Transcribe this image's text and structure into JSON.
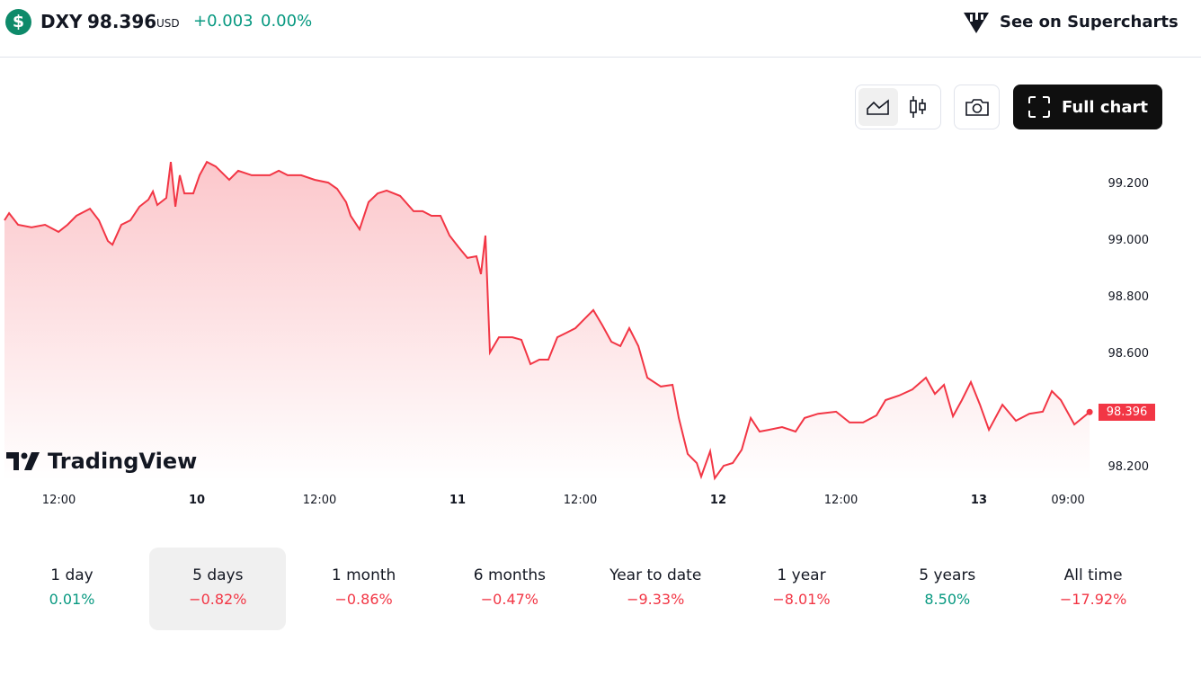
{
  "header": {
    "symbol": "DXY",
    "price": "98.396",
    "currency": "USD",
    "change": "+0.003",
    "change_pct": "0.00%",
    "logo_glyph": "$",
    "supercharts": "See on Supercharts"
  },
  "toolbar": {
    "full_chart": "Full chart",
    "icons": [
      "area-chart-icon",
      "candles-icon",
      "camera-icon",
      "fullscreen-icon"
    ]
  },
  "brand": "TradingView",
  "colors": {
    "up": "#089981",
    "down": "#f23645",
    "line": "#f23645"
  },
  "chart_data": {
    "type": "area",
    "x_unit": "hours since day 9 00:00",
    "y_ticks": [
      "99.200",
      "99.000",
      "98.800",
      "98.600",
      "98.200"
    ],
    "y_tick_values": [
      99.2,
      99.0,
      98.8,
      98.6,
      98.2
    ],
    "x_ticks": [
      {
        "label": "12:00",
        "h": 11.3,
        "bold": false
      },
      {
        "label": "10",
        "h": 24,
        "bold": true
      },
      {
        "label": "12:00",
        "h": 35.3,
        "bold": false
      },
      {
        "label": "11",
        "h": 48,
        "bold": true
      },
      {
        "label": "12:00",
        "h": 59.3,
        "bold": false
      },
      {
        "label": "12",
        "h": 72,
        "bold": true
      },
      {
        "label": "12:00",
        "h": 83.3,
        "bold": false
      },
      {
        "label": "13",
        "h": 96,
        "bold": true
      },
      {
        "label": "09:00",
        "h": 104.2,
        "bold": false
      }
    ],
    "last_price": "98.396",
    "points": [
      [
        6.29,
        99.073
      ],
      [
        6.71,
        99.098
      ],
      [
        7.54,
        99.057
      ],
      [
        8.78,
        99.048
      ],
      [
        10.02,
        99.057
      ],
      [
        11.26,
        99.032
      ],
      [
        12.09,
        99.057
      ],
      [
        12.91,
        99.089
      ],
      [
        14.16,
        99.114
      ],
      [
        14.98,
        99.073
      ],
      [
        15.81,
        99.0
      ],
      [
        16.23,
        98.987
      ],
      [
        17.05,
        99.057
      ],
      [
        17.88,
        99.073
      ],
      [
        18.71,
        99.121
      ],
      [
        19.54,
        99.146
      ],
      [
        19.95,
        99.175
      ],
      [
        20.36,
        99.127
      ],
      [
        21.19,
        99.152
      ],
      [
        21.6,
        99.279
      ],
      [
        22.02,
        99.121
      ],
      [
        22.43,
        99.232
      ],
      [
        22.85,
        99.168
      ],
      [
        23.67,
        99.168
      ],
      [
        24.25,
        99.232
      ],
      [
        24.92,
        99.279
      ],
      [
        25.74,
        99.263
      ],
      [
        26.98,
        99.216
      ],
      [
        27.81,
        99.248
      ],
      [
        29.05,
        99.232
      ],
      [
        30.71,
        99.232
      ],
      [
        31.54,
        99.248
      ],
      [
        32.36,
        99.232
      ],
      [
        33.6,
        99.232
      ],
      [
        34.85,
        99.216
      ],
      [
        36.09,
        99.206
      ],
      [
        36.91,
        99.184
      ],
      [
        37.74,
        99.137
      ],
      [
        38.16,
        99.089
      ],
      [
        38.98,
        99.041
      ],
      [
        39.81,
        99.137
      ],
      [
        40.64,
        99.168
      ],
      [
        41.47,
        99.178
      ],
      [
        42.71,
        99.159
      ],
      [
        43.95,
        99.105
      ],
      [
        44.78,
        99.105
      ],
      [
        45.6,
        99.089
      ],
      [
        46.43,
        99.089
      ],
      [
        47.26,
        99.019
      ],
      [
        48.09,
        98.978
      ],
      [
        48.91,
        98.94
      ],
      [
        49.74,
        98.946
      ],
      [
        50.15,
        98.883
      ],
      [
        50.57,
        99.019
      ],
      [
        50.98,
        98.606
      ],
      [
        51.81,
        98.66
      ],
      [
        53.05,
        98.66
      ],
      [
        53.88,
        98.651
      ],
      [
        54.71,
        98.565
      ],
      [
        55.53,
        98.581
      ],
      [
        56.36,
        98.581
      ],
      [
        57.19,
        98.66
      ],
      [
        58.02,
        98.676
      ],
      [
        58.85,
        98.692
      ],
      [
        59.67,
        98.724
      ],
      [
        60.5,
        98.756
      ],
      [
        61.33,
        98.702
      ],
      [
        62.16,
        98.644
      ],
      [
        62.99,
        98.629
      ],
      [
        63.81,
        98.692
      ],
      [
        64.64,
        98.629
      ],
      [
        65.47,
        98.517
      ],
      [
        66.71,
        98.486
      ],
      [
        67.79,
        98.492
      ],
      [
        68.37,
        98.375
      ],
      [
        69.19,
        98.248
      ],
      [
        70.02,
        98.216
      ],
      [
        70.43,
        98.168
      ],
      [
        71.26,
        98.257
      ],
      [
        71.68,
        98.162
      ],
      [
        72.5,
        98.206
      ],
      [
        73.33,
        98.216
      ],
      [
        74.16,
        98.263
      ],
      [
        74.99,
        98.375
      ],
      [
        75.81,
        98.327
      ],
      [
        76.64,
        98.333
      ],
      [
        77.88,
        98.343
      ],
      [
        79.12,
        98.327
      ],
      [
        79.95,
        98.375
      ],
      [
        81.19,
        98.39
      ],
      [
        82.85,
        98.397
      ],
      [
        84.09,
        98.359
      ],
      [
        85.33,
        98.359
      ],
      [
        86.57,
        98.384
      ],
      [
        87.4,
        98.438
      ],
      [
        88.64,
        98.454
      ],
      [
        89.88,
        98.476
      ],
      [
        91.12,
        98.517
      ],
      [
        91.95,
        98.46
      ],
      [
        92.78,
        98.492
      ],
      [
        93.61,
        98.381
      ],
      [
        94.43,
        98.438
      ],
      [
        95.26,
        98.502
      ],
      [
        96.09,
        98.422
      ],
      [
        96.92,
        98.333
      ],
      [
        98.16,
        98.422
      ],
      [
        99.4,
        98.365
      ],
      [
        100.64,
        98.39
      ],
      [
        101.88,
        98.397
      ],
      [
        102.71,
        98.47
      ],
      [
        103.54,
        98.438
      ],
      [
        104.78,
        98.352
      ],
      [
        106.19,
        98.396
      ]
    ]
  },
  "ranges": [
    {
      "label": "1 day",
      "pct": "0.01%",
      "dir": "up"
    },
    {
      "label": "5 days",
      "pct": "−0.82%",
      "dir": "dn",
      "selected": true
    },
    {
      "label": "1 month",
      "pct": "−0.86%",
      "dir": "dn"
    },
    {
      "label": "6 months",
      "pct": "−0.47%",
      "dir": "dn"
    },
    {
      "label": "Year to date",
      "pct": "−9.33%",
      "dir": "dn"
    },
    {
      "label": "1 year",
      "pct": "−8.01%",
      "dir": "dn"
    },
    {
      "label": "5 years",
      "pct": "8.50%",
      "dir": "up"
    },
    {
      "label": "All time",
      "pct": "−17.92%",
      "dir": "dn"
    }
  ]
}
